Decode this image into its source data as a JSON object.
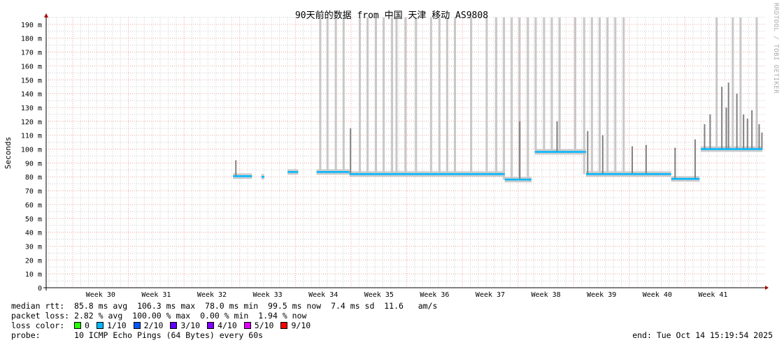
{
  "chart_data": {
    "type": "line",
    "title": "90天前的数据 from 中国 天津 移动 AS9808",
    "ylabel": "Seconds",
    "xlabel": "",
    "ylim": [
      0,
      195
    ],
    "yticks": [
      "0",
      "10 m",
      "20 m",
      "30 m",
      "40 m",
      "50 m",
      "60 m",
      "70 m",
      "80 m",
      "90 m",
      "100 m",
      "110 m",
      "120 m",
      "130 m",
      "140 m",
      "150 m",
      "160 m",
      "170 m",
      "180 m",
      "190 m"
    ],
    "xlim_weeks": [
      29.52,
      42.41
    ],
    "xticks": [
      "Week 30",
      "Week 31",
      "Week 32",
      "Week 33",
      "Week 34",
      "Week 35",
      "Week 36",
      "Week 37",
      "Week 38",
      "Week 39",
      "Week 40",
      "Week 41"
    ],
    "grid": true,
    "median_segments_ms": [
      {
        "x": [
          32.88,
          33.22
        ],
        "y": 80.5
      },
      {
        "x": [
          33.39,
          33.44
        ],
        "y": 80
      },
      {
        "x": [
          33.86,
          34.05
        ],
        "y": 83.5
      },
      {
        "x": [
          34.38,
          34.97
        ],
        "y": 83.5
      },
      {
        "x": [
          34.97,
          37.76
        ],
        "y": 82
      },
      {
        "x": [
          37.76,
          38.24
        ],
        "y": 78
      },
      {
        "x": [
          38.3,
          39.22
        ],
        "y": 98
      },
      {
        "x": [
          39.22,
          40.75
        ],
        "y": 82
      },
      {
        "x": [
          40.75,
          41.26
        ],
        "y": 78.5
      },
      {
        "x": [
          41.28,
          42.39
        ],
        "y": 100
      }
    ],
    "spikes_ms": [
      {
        "x": 32.93,
        "y": 92
      },
      {
        "x": 34.44,
        "y": 195
      },
      {
        "x": 34.57,
        "y": 195
      },
      {
        "x": 34.72,
        "y": 195
      },
      {
        "x": 34.86,
        "y": 195
      },
      {
        "x": 34.99,
        "y": 115
      },
      {
        "x": 35.15,
        "y": 195
      },
      {
        "x": 35.29,
        "y": 195
      },
      {
        "x": 35.44,
        "y": 195
      },
      {
        "x": 35.58,
        "y": 195
      },
      {
        "x": 35.73,
        "y": 195
      },
      {
        "x": 35.81,
        "y": 195
      },
      {
        "x": 35.97,
        "y": 195
      },
      {
        "x": 36.16,
        "y": 195
      },
      {
        "x": 36.43,
        "y": 195
      },
      {
        "x": 36.58,
        "y": 195
      },
      {
        "x": 36.72,
        "y": 195
      },
      {
        "x": 36.86,
        "y": 195
      },
      {
        "x": 37.15,
        "y": 195
      },
      {
        "x": 37.43,
        "y": 195
      },
      {
        "x": 37.6,
        "y": 195
      },
      {
        "x": 37.74,
        "y": 195
      },
      {
        "x": 37.88,
        "y": 195
      },
      {
        "x": 38.02,
        "y": 195
      },
      {
        "x": 38.17,
        "y": 195
      },
      {
        "x": 38.31,
        "y": 195
      },
      {
        "x": 38.46,
        "y": 195
      },
      {
        "x": 38.6,
        "y": 195
      },
      {
        "x": 38.74,
        "y": 195
      },
      {
        "x": 39.02,
        "y": 195
      },
      {
        "x": 39.18,
        "y": 195
      },
      {
        "x": 39.32,
        "y": 195
      },
      {
        "x": 39.46,
        "y": 195
      },
      {
        "x": 39.6,
        "y": 195
      },
      {
        "x": 39.74,
        "y": 195
      },
      {
        "x": 39.89,
        "y": 195
      },
      {
        "x": 38.03,
        "y": 120
      },
      {
        "x": 38.7,
        "y": 120
      },
      {
        "x": 39.25,
        "y": 113
      },
      {
        "x": 39.52,
        "y": 110
      },
      {
        "x": 40.05,
        "y": 102
      },
      {
        "x": 40.3,
        "y": 103
      },
      {
        "x": 40.82,
        "y": 101
      },
      {
        "x": 41.18,
        "y": 107
      },
      {
        "x": 41.56,
        "y": 195
      },
      {
        "x": 41.85,
        "y": 195
      },
      {
        "x": 41.99,
        "y": 195
      },
      {
        "x": 42.28,
        "y": 195
      },
      {
        "x": 41.35,
        "y": 118
      },
      {
        "x": 41.45,
        "y": 125
      },
      {
        "x": 41.66,
        "y": 145
      },
      {
        "x": 41.74,
        "y": 130
      },
      {
        "x": 41.78,
        "y": 148
      },
      {
        "x": 41.93,
        "y": 140
      },
      {
        "x": 42.05,
        "y": 125
      },
      {
        "x": 42.12,
        "y": 122
      },
      {
        "x": 42.2,
        "y": 128
      },
      {
        "x": 42.33,
        "y": 118
      },
      {
        "x": 42.38,
        "y": 112
      }
    ]
  },
  "legend": {
    "median_rtt": {
      "label": "median rtt:",
      "avg": "85.8 ms avg",
      "max": "106.3 ms max",
      "min": "78.0 ms min",
      "now": "99.5 ms now",
      "sd": "7.4 ms sd",
      "ams": "11.6   am/s"
    },
    "packet_loss": {
      "label": "packet loss:",
      "avg": "2.82 % avg",
      "max": "100.00 % max",
      "min": "0.00 % min",
      "now": "1.94 % now"
    },
    "loss_color": {
      "label": "loss color:",
      "items": [
        {
          "label": "0",
          "color": "#26ff00"
        },
        {
          "label": "1/10",
          "color": "#00b8ff"
        },
        {
          "label": "2/10",
          "color": "#0059ff"
        },
        {
          "label": "3/10",
          "color": "#5e00ff"
        },
        {
          "label": "4/10",
          "color": "#7e00ff"
        },
        {
          "label": "5/10",
          "color": "#dd00ff"
        },
        {
          "label": "9/10",
          "color": "#ff0000"
        }
      ]
    },
    "probe": {
      "label": "probe:",
      "value": "10 ICMP Echo Pings (64 Bytes) every 60s"
    },
    "end": "end: Tue Oct 14 15:19:54 2025"
  },
  "watermark": "RRDTOOL / TOBI OETIKER"
}
